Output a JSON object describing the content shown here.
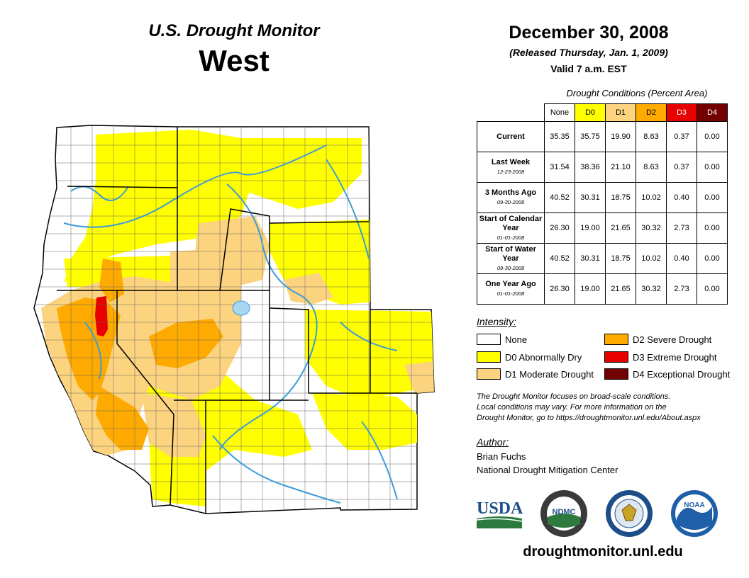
{
  "header": {
    "product": "U.S. Drought Monitor",
    "region": "West",
    "date": "December 30, 2008",
    "released": "(Released Thursday, Jan. 1, 2009)",
    "valid": "Valid 7 a.m. EST"
  },
  "table": {
    "title": "Drought Conditions (Percent Area)",
    "columns": [
      {
        "label": "None",
        "color": "#ffffff",
        "text_color": "#000000"
      },
      {
        "label": "D0",
        "color": "#ffff00",
        "text_color": "#000000"
      },
      {
        "label": "D1",
        "color": "#fcd37f",
        "text_color": "#000000"
      },
      {
        "label": "D2",
        "color": "#ffaa00",
        "text_color": "#000000"
      },
      {
        "label": "D3",
        "color": "#e60000",
        "text_color": "#ffffff"
      },
      {
        "label": "D4",
        "color": "#730000",
        "text_color": "#ffffff"
      }
    ],
    "rows": [
      {
        "label": "Current",
        "date": "",
        "values": [
          "35.35",
          "35.75",
          "19.90",
          "8.63",
          "0.37",
          "0.00"
        ]
      },
      {
        "label": "Last Week",
        "date": "12-23-2008",
        "values": [
          "31.54",
          "38.36",
          "21.10",
          "8.63",
          "0.37",
          "0.00"
        ]
      },
      {
        "label": "3 Months Ago",
        "date": "09-30-2008",
        "values": [
          "40.52",
          "30.31",
          "18.75",
          "10.02",
          "0.40",
          "0.00"
        ]
      },
      {
        "label": "Start of Calendar Year",
        "date": "01-01-2008",
        "values": [
          "26.30",
          "19.00",
          "21.65",
          "30.32",
          "2.73",
          "0.00"
        ]
      },
      {
        "label": "Start of Water Year",
        "date": "09-30-2008",
        "values": [
          "40.52",
          "30.31",
          "18.75",
          "10.02",
          "0.40",
          "0.00"
        ]
      },
      {
        "label": "One Year Ago",
        "date": "01-01-2008",
        "values": [
          "26.30",
          "19.00",
          "21.65",
          "30.32",
          "2.73",
          "0.00"
        ]
      }
    ]
  },
  "legend": {
    "title": "Intensity:",
    "items": [
      {
        "label": "None",
        "color": "#ffffff"
      },
      {
        "label": "D0 Abnormally Dry",
        "color": "#ffff00"
      },
      {
        "label": "D1 Moderate Drought",
        "color": "#fcd37f"
      },
      {
        "label": "D2 Severe Drought",
        "color": "#ffaa00"
      },
      {
        "label": "D3 Extreme Drought",
        "color": "#e60000"
      },
      {
        "label": "D4 Exceptional Drought",
        "color": "#730000"
      }
    ]
  },
  "note": {
    "line1": "The Drought Monitor focuses on broad-scale conditions.",
    "line2": "Local conditions may vary. For more information on the",
    "line3": "Drought Monitor, go to https://droughtmonitor.unl.edu/About.aspx"
  },
  "author": {
    "label": "Author:",
    "name": "Brian Fuchs",
    "org": "National Drought Mitigation Center"
  },
  "logos": {
    "usda": "USDA",
    "ndmc": "NDMC",
    "noaa": "NOAA"
  },
  "website": "droughtmonitor.unl.edu",
  "colors": {
    "river": "#3c9cd8",
    "border": "#000000",
    "county": "#666666"
  }
}
